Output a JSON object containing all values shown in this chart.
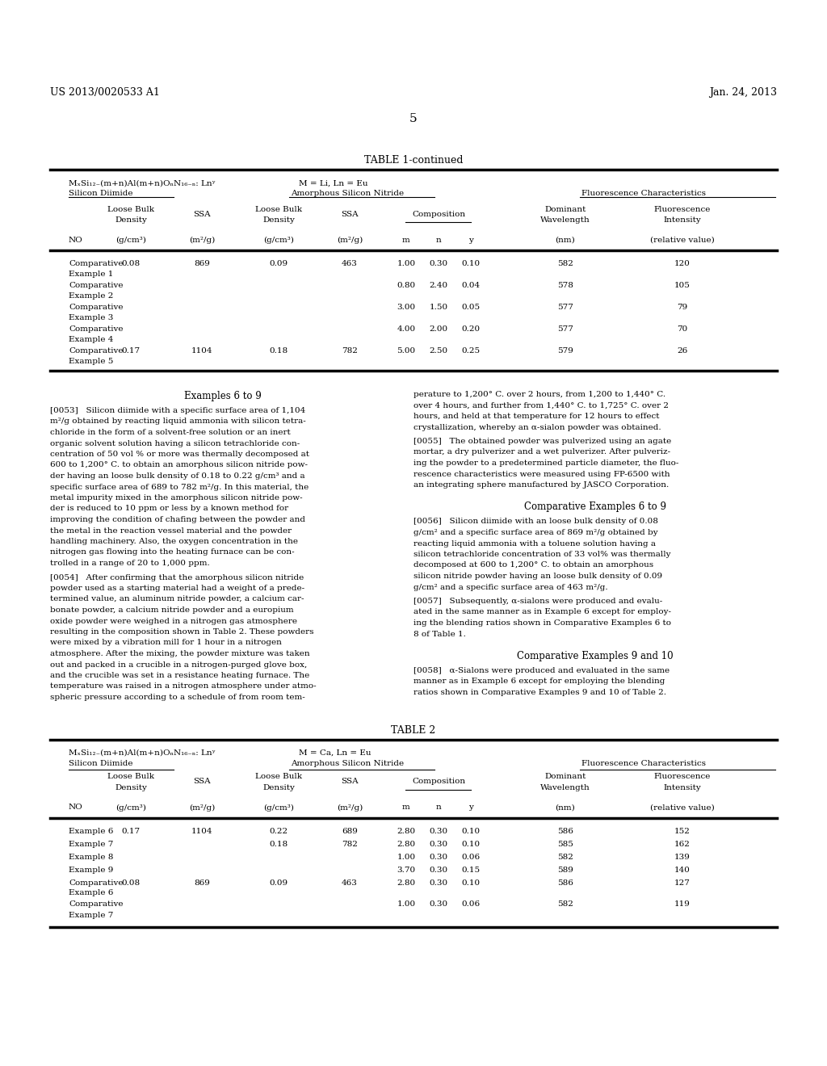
{
  "header_left": "US 2013/0020533 A1",
  "header_right": "Jan. 24, 2013",
  "page_number": "5",
  "table1_title": "TABLE 1-continued",
  "table1_data": [
    [
      "Comparative\nExample 1",
      "0.08",
      "869",
      "0.09",
      "463",
      "1.00",
      "0.30",
      "0.10",
      "582",
      "120"
    ],
    [
      "Comparative\nExample 2",
      "",
      "",
      "",
      "",
      "0.80",
      "2.40",
      "0.04",
      "578",
      "105"
    ],
    [
      "Comparative\nExample 3",
      "",
      "",
      "",
      "",
      "3.00",
      "1.50",
      "0.05",
      "577",
      "79"
    ],
    [
      "Comparative\nExample 4",
      "",
      "",
      "",
      "",
      "4.00",
      "2.00",
      "0.20",
      "577",
      "70"
    ],
    [
      "Comparative\nExample 5",
      "0.17",
      "1104",
      "0.18",
      "782",
      "5.00",
      "2.50",
      "0.25",
      "579",
      "26"
    ]
  ],
  "table2_title": "TABLE 2",
  "table2_data": [
    [
      "Example 6",
      "0.17",
      "1104",
      "0.22",
      "689",
      "2.80",
      "0.30",
      "0.10",
      "586",
      "152"
    ],
    [
      "Example 7",
      "",
      "0.18",
      "782",
      "",
      "2.80",
      "0.30",
      "0.10",
      "585",
      "162"
    ],
    [
      "Example 8",
      "",
      "",
      "",
      "",
      "1.00",
      "0.30",
      "0.06",
      "582",
      "139"
    ],
    [
      "Example 9",
      "",
      "",
      "",
      "",
      "3.70",
      "0.30",
      "0.15",
      "589",
      "140"
    ],
    [
      "Comparative\nExample 6",
      "0.08",
      "869",
      "0.09",
      "463",
      "2.80",
      "0.30",
      "0.10",
      "586",
      "127"
    ],
    [
      "Comparative\nExample 7",
      "",
      "",
      "",
      "",
      "1.00",
      "0.30",
      "0.06",
      "582",
      "119"
    ]
  ],
  "bg_color": "#ffffff"
}
